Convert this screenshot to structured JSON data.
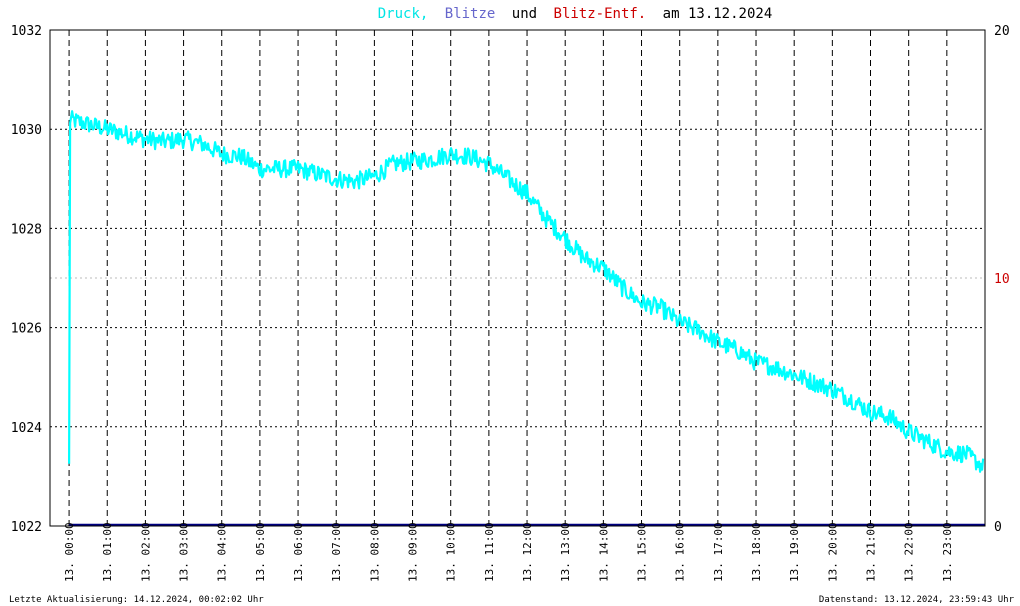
{
  "title": {
    "parts": [
      {
        "text": "Druck,",
        "color": "#00e5e5"
      },
      {
        "text": "Blitze",
        "color": "#6666cc"
      },
      {
        "text": "und",
        "color": "#000000"
      },
      {
        "text": "Blitz-Entf.",
        "color": "#cc0000"
      },
      {
        "text": "am 13.12.2024",
        "color": "#000000"
      }
    ]
  },
  "footer": {
    "left": "Letzte Aktualisierung: 14.12.2024, 00:02:02 Uhr",
    "right": "Datenstand: 13.12.2024, 23:59:43 Uhr"
  },
  "colors": {
    "pressure": "#00ffff",
    "lightning": "#000080",
    "distance": "#cc0000",
    "grid": "#000000",
    "border": "#000000"
  },
  "chart_data": {
    "type": "line",
    "title": "Druck, Blitze und Blitz-Entf. am 13.12.2024",
    "grid": true,
    "y_left": {
      "ylim": [
        1022,
        1032
      ],
      "ticks": [
        "1032",
        "1030",
        "1028",
        "1026",
        "1024",
        "1022"
      ]
    },
    "y_right": {
      "ylim": [
        0,
        20
      ],
      "ticks": [
        "20",
        "10",
        "0"
      ],
      "tick_colors": [
        "#000000",
        "#cc0000",
        "#000000"
      ]
    },
    "x_ticks": [
      "13. 00:00",
      "13. 01:00",
      "13. 02:00",
      "13. 03:00",
      "13. 04:00",
      "13. 05:00",
      "13. 06:00",
      "13. 07:00",
      "13. 08:00",
      "13. 09:00",
      "13. 10:00",
      "13. 11:00",
      "13. 12:00",
      "13. 13:00",
      "13. 14:00",
      "13. 15:00",
      "13. 16:00",
      "13. 17:00",
      "13. 18:00",
      "13. 19:00",
      "13. 20:00",
      "13. 21:00",
      "13. 22:00",
      "13. 23:00"
    ],
    "series": [
      {
        "name": "Druck",
        "axis": "left",
        "x_hours": [
          0,
          0.5,
          1,
          1.5,
          2,
          2.5,
          3,
          3.5,
          4,
          4.5,
          5,
          5.5,
          6,
          6.5,
          7,
          7.5,
          8,
          8.5,
          9,
          9.5,
          10,
          10.5,
          11,
          11.5,
          12,
          12.5,
          13,
          13.5,
          14,
          14.5,
          15,
          15.5,
          16,
          16.5,
          17,
          17.5,
          18,
          18.5,
          19,
          19.5,
          20,
          20.5,
          21,
          21.5,
          22,
          22.5,
          23,
          23.5,
          23.95
        ],
        "values": [
          1030.2,
          1030.1,
          1030.0,
          1029.9,
          1029.8,
          1029.75,
          1029.8,
          1029.7,
          1029.5,
          1029.45,
          1029.2,
          1029.2,
          1029.2,
          1029.1,
          1029.0,
          1028.95,
          1029.05,
          1029.3,
          1029.35,
          1029.4,
          1029.5,
          1029.45,
          1029.3,
          1029.0,
          1028.7,
          1028.2,
          1027.8,
          1027.4,
          1027.2,
          1026.8,
          1026.5,
          1026.4,
          1026.1,
          1025.95,
          1025.7,
          1025.55,
          1025.3,
          1025.2,
          1025.05,
          1024.9,
          1024.75,
          1024.55,
          1024.3,
          1024.2,
          1023.9,
          1023.7,
          1023.5,
          1023.45,
          1023.2
        ],
        "noise": 0.18
      },
      {
        "name": "Blitze",
        "axis": "right",
        "x_hours": [
          0,
          23.95
        ],
        "values": [
          0,
          0
        ]
      }
    ]
  }
}
